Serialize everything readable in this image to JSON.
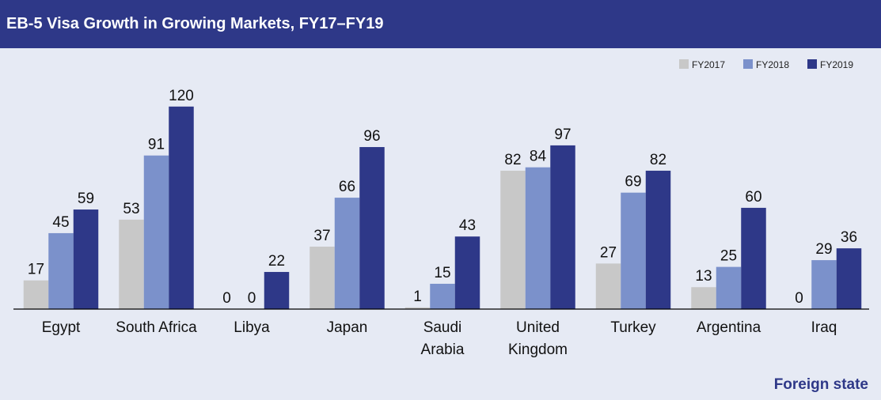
{
  "header": {
    "title": "EB-5 Visa Growth in Growing Markets, FY17–FY19"
  },
  "colors": {
    "header_bg": "#2e3888",
    "background": "#e6eaf4",
    "FY2017": "#c8c8c8",
    "FY2018": "#7b91cb",
    "FY2019": "#2e3888"
  },
  "chart_data": {
    "type": "bar",
    "title": "EB-5 Visa Growth in Growing Markets, FY17–FY19",
    "xlabel": "Foreign state",
    "ylabel": "",
    "ylim": [
      0,
      120
    ],
    "grid": false,
    "legend_position": "top-right",
    "categories": [
      [
        "Egypt"
      ],
      [
        "South Africa"
      ],
      [
        "Libya"
      ],
      [
        "Japan"
      ],
      [
        "Saudi",
        "Arabia"
      ],
      [
        "United",
        "Kingdom"
      ],
      [
        "Turkey"
      ],
      [
        "Argentina"
      ],
      [
        "Iraq"
      ]
    ],
    "series": [
      {
        "name": "FY2017",
        "values": [
          17,
          53,
          0,
          37,
          1,
          82,
          27,
          13,
          0
        ]
      },
      {
        "name": "FY2018",
        "values": [
          45,
          91,
          0,
          66,
          15,
          84,
          69,
          25,
          29
        ]
      },
      {
        "name": "FY2019",
        "values": [
          59,
          120,
          22,
          96,
          43,
          97,
          82,
          60,
          36
        ]
      }
    ]
  }
}
